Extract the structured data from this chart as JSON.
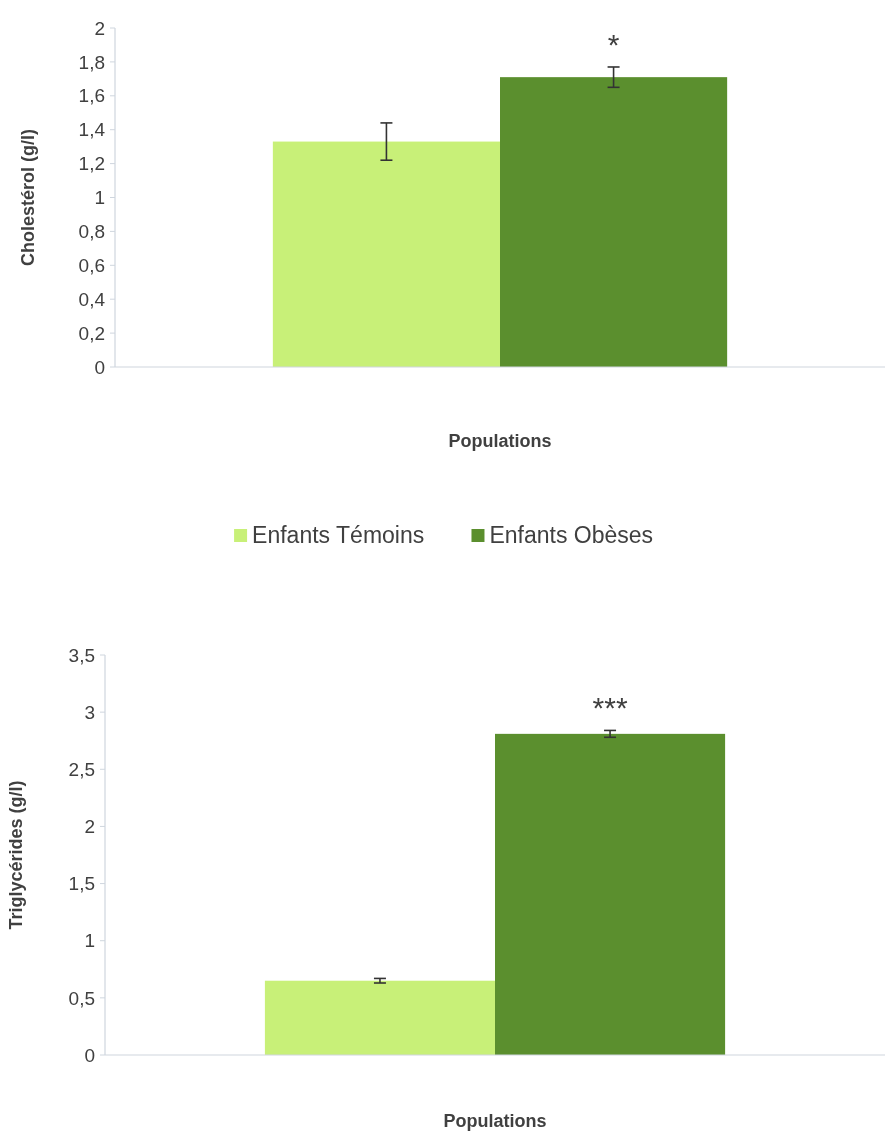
{
  "chart_data": [
    {
      "type": "bar",
      "categories": [
        null
      ],
      "xlabel": "Populations",
      "ylabel": "Cholestérol (g/l)",
      "series": [
        {
          "name": "Enfants Témoins",
          "color": "#c8f078",
          "values": [
            1.33
          ],
          "errors": [
            0.11
          ]
        },
        {
          "name": "Enfants Obèses",
          "color": "#5b8f2e",
          "values": [
            1.71
          ],
          "errors": [
            0.06
          ]
        }
      ],
      "ylim": [
        0,
        2
      ],
      "yticks": [
        0,
        {
          "value": 0.2,
          "label": "0,2"
        },
        {
          "value": 0.4,
          "label": "0,4"
        },
        {
          "value": 0.6,
          "label": "0,6"
        },
        {
          "value": 0.8,
          "label": "0,8"
        },
        1,
        {
          "value": 1.2,
          "label": "1,2"
        },
        {
          "value": 1.4,
          "label": "1,4"
        },
        {
          "value": 1.6,
          "label": "1,6"
        },
        {
          "value": 1.8,
          "label": "1,8"
        },
        2
      ],
      "legend": "bottom",
      "tick_labels": "y",
      "annotations": [
        "*"
      ]
    },
    {
      "type": "bar",
      "categories": [
        null
      ],
      "xlabel": "Populations",
      "ylabel": "Triglycérides (g/l)",
      "series": [
        {
          "color": "#c8f078",
          "values": [
            0.65
          ],
          "errors": [
            0.02
          ]
        },
        {
          "color": "#5b8f2e",
          "values": [
            2.81
          ],
          "errors": [
            0.03
          ]
        }
      ],
      "ylim": [
        0,
        3.5
      ],
      "yticks": [
        0,
        {
          "value": 0.5,
          "label": "0,5"
        },
        1,
        {
          "value": 1.5,
          "label": "1,5"
        },
        2,
        {
          "value": 2.5,
          "label": "2,5"
        },
        3,
        {
          "value": 3.5,
          "label": "3,5"
        }
      ],
      "tick_labels": "y",
      "annotations": [
        "***"
      ]
    }
  ]
}
